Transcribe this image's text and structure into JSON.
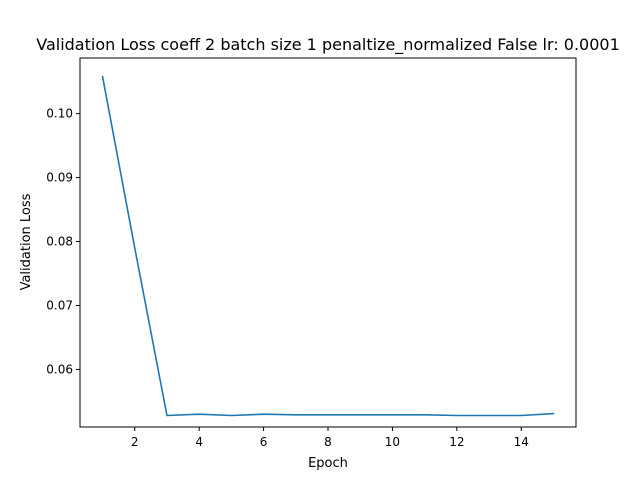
{
  "chart_data": {
    "type": "line",
    "title": "Validation Loss coeff 2 batch size 1 penaltize_normalized False lr: 0.0001",
    "xlabel": "Epoch",
    "ylabel": "Validation Loss",
    "xlim": [
      0.3,
      15.7
    ],
    "ylim": [
      0.051,
      0.1087
    ],
    "xticks": [
      2,
      4,
      6,
      8,
      10,
      12,
      14
    ],
    "yticks": [
      0.06,
      0.07,
      0.08,
      0.09,
      0.1
    ],
    "ytick_labels": [
      "0.06",
      "0.07",
      "0.08",
      "0.09",
      "0.10"
    ],
    "grid": false,
    "series": [
      {
        "color": "#1f77b4",
        "x": [
          1,
          2,
          3,
          4,
          5,
          6,
          7,
          8,
          9,
          10,
          11,
          12,
          13,
          14,
          15
        ],
        "y": [
          0.1058,
          0.079,
          0.0528,
          0.053,
          0.0528,
          0.053,
          0.0529,
          0.0529,
          0.0529,
          0.0529,
          0.0529,
          0.0528,
          0.0528,
          0.0528,
          0.0531
        ]
      }
    ]
  }
}
